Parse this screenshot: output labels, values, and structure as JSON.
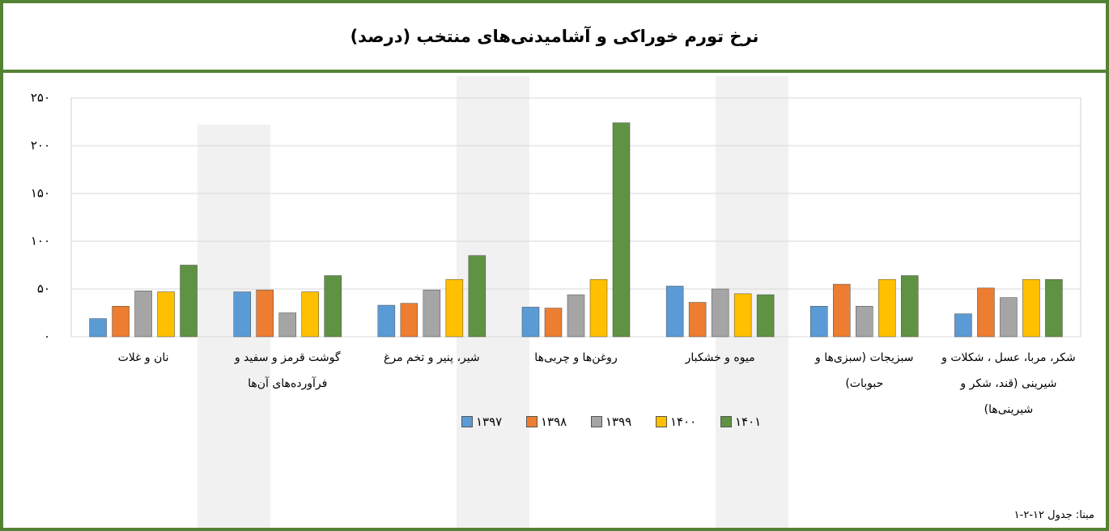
{
  "chart_data": {
    "type": "bar",
    "title": "نرخ تورم خوراکی و آشامیدنی‌های منتخب (درصد)",
    "categories": [
      "نان و غلات",
      "گوشت قرمز و سفید و فرآورده‌های آن‌ها",
      "شیر، پنیر و تخم مرغ",
      "روغن‌ها و چربی‌ها",
      "میوه و خشکبار",
      "سبزیجات (سبزی‌ها و حبوبات)",
      "شکر، مربا، عسل ، شکلات و شیرینی (قند، شکر و شیرینی‌ها)"
    ],
    "series": [
      {
        "name": "۱۳۹۷",
        "color": "#5b9bd5",
        "values": [
          19,
          47,
          33,
          31,
          53,
          32,
          24
        ]
      },
      {
        "name": "۱۳۹۸",
        "color": "#ed7d31",
        "values": [
          32,
          49,
          35,
          30,
          36,
          55,
          51
        ]
      },
      {
        "name": "۱۳۹۹",
        "color": "#a5a5a5",
        "values": [
          48,
          25,
          49,
          44,
          50,
          32,
          41
        ]
      },
      {
        "name": "۱۴۰۰",
        "color": "#ffc000",
        "values": [
          47,
          47,
          60,
          60,
          45,
          60,
          60
        ]
      },
      {
        "name": "۱۴۰۱",
        "color": "#5f9343",
        "values": [
          75,
          64,
          85,
          224,
          44,
          64,
          60
        ]
      }
    ],
    "ylim": [
      0,
      250
    ],
    "yticks": [
      {
        "value": 0,
        "label": "۰"
      },
      {
        "value": 50,
        "label": "۵۰"
      },
      {
        "value": 100,
        "label": "۱۰۰"
      },
      {
        "value": 150,
        "label": "۱۵۰"
      },
      {
        "value": 200,
        "label": "۲۰۰"
      },
      {
        "value": 250,
        "label": "۲۵۰"
      }
    ],
    "grid": true,
    "note": "مبنا: جدول ۱۲-۲-۱"
  }
}
